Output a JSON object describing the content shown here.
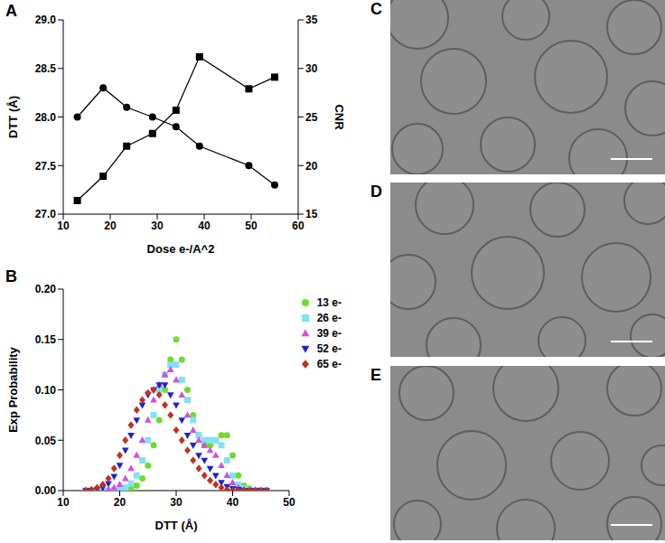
{
  "chart_data": [
    {
      "panel": "A",
      "type": "line",
      "xlabel": "Dose e-/A^2",
      "ylabel": "DTT (Å)",
      "y2label": "CNR",
      "x": [
        13,
        18.5,
        23.5,
        29,
        34,
        39,
        49.5,
        55
      ],
      "xlim": [
        10,
        60
      ],
      "xticks": [
        10,
        20,
        30,
        40,
        50,
        60
      ],
      "ylim": [
        27,
        29
      ],
      "yticks": [
        {
          "value": 27,
          "label": "27.0"
        },
        27.5,
        {
          "value": 28,
          "label": "28.0"
        },
        28.5,
        {
          "value": 29,
          "label": "29.0"
        }
      ],
      "y2lim": [
        15,
        35
      ],
      "y2ticks": [
        15,
        20,
        25,
        30,
        35
      ],
      "grid": false,
      "series": [
        {
          "color": "#000000",
          "marker": "circle",
          "axis": "y",
          "values": [
            28.0,
            28.3,
            28.1,
            28.0,
            27.9,
            27.7,
            27.5,
            27.3
          ]
        },
        {
          "color": "#000000",
          "marker": "square",
          "axis": "y2",
          "values": [
            16.4,
            18.9,
            22.0,
            23.3,
            25.7,
            31.2,
            27.9,
            29.1
          ]
        }
      ]
    },
    {
      "panel": "B",
      "type": "scatter",
      "xlabel": "DTT (Å)",
      "ylabel": "Exp Probability",
      "xlim": [
        10,
        50
      ],
      "xticks": [
        10,
        20,
        30,
        40,
        50
      ],
      "ylim": [
        0,
        0.2
      ],
      "yticks": [
        {
          "value": 0,
          "label": "0.00"
        },
        {
          "value": 0.05,
          "label": "0.05"
        },
        {
          "value": 0.1,
          "label": "0.10"
        },
        {
          "value": 0.15,
          "label": "0.15"
        },
        {
          "value": 0.2,
          "label": "0.20"
        }
      ],
      "grid": false,
      "legend": "top-right",
      "x": [
        14,
        15,
        16,
        17,
        18,
        19,
        20,
        21,
        22,
        23,
        24,
        25,
        26,
        27,
        28,
        29,
        30,
        31,
        32,
        33,
        34,
        35,
        36,
        37,
        38,
        39,
        40,
        41,
        42,
        43,
        44,
        45,
        46
      ],
      "series": [
        {
          "name": "13 e-",
          "color": "#6fdc2a",
          "marker": "circle",
          "values": [
            0,
            0,
            0,
            0,
            0,
            0,
            0,
            0.001,
            0.002,
            0.005,
            0.012,
            0.025,
            0.045,
            0.07,
            0.1,
            0.13,
            0.15,
            0.13,
            0.1,
            0.075,
            0.055,
            0.045,
            0.045,
            0.05,
            0.055,
            0.055,
            0.035,
            0.015,
            0.005,
            0.002,
            0,
            0,
            0
          ]
        },
        {
          "name": "26 e-",
          "color": "#7fe3f2",
          "marker": "square",
          "values": [
            0,
            0,
            0,
            0,
            0,
            0,
            0.001,
            0.003,
            0.007,
            0.015,
            0.03,
            0.05,
            0.075,
            0.1,
            0.115,
            0.125,
            0.125,
            0.11,
            0.09,
            0.07,
            0.055,
            0.05,
            0.05,
            0.05,
            0.045,
            0.03,
            0.015,
            0.006,
            0.002,
            0,
            0,
            0,
            0
          ]
        },
        {
          "name": "39 e-",
          "color": "#d24fe0",
          "marker": "triangle",
          "values": [
            0,
            0,
            0,
            0,
            0.001,
            0.003,
            0.006,
            0.012,
            0.022,
            0.035,
            0.05,
            0.07,
            0.09,
            0.105,
            0.115,
            0.12,
            0.11,
            0.095,
            0.075,
            0.06,
            0.05,
            0.045,
            0.04,
            0.035,
            0.025,
            0.015,
            0.008,
            0.003,
            0.001,
            0,
            0,
            0,
            0
          ]
        },
        {
          "name": "52 e-",
          "color": "#1f22cc",
          "marker": "triangle-down",
          "values": [
            0,
            0,
            0.001,
            0.003,
            0.007,
            0.014,
            0.025,
            0.04,
            0.055,
            0.07,
            0.085,
            0.095,
            0.1,
            0.105,
            0.105,
            0.095,
            0.085,
            0.07,
            0.055,
            0.045,
            0.035,
            0.03,
            0.022,
            0.015,
            0.008,
            0.004,
            0.002,
            0.001,
            0,
            0,
            0,
            0,
            0
          ]
        },
        {
          "name": "65 e-",
          "color": "#c2321a",
          "marker": "diamond",
          "values": [
            0,
            0.001,
            0.003,
            0.006,
            0.012,
            0.022,
            0.035,
            0.05,
            0.065,
            0.08,
            0.09,
            0.097,
            0.1,
            0.095,
            0.085,
            0.075,
            0.06,
            0.05,
            0.04,
            0.03,
            0.022,
            0.015,
            0.01,
            0.006,
            0.003,
            0.001,
            0,
            0,
            0,
            0,
            0,
            0,
            0
          ]
        }
      ]
    }
  ],
  "images": [
    {
      "label": "C"
    },
    {
      "label": "D"
    },
    {
      "label": "E"
    }
  ]
}
